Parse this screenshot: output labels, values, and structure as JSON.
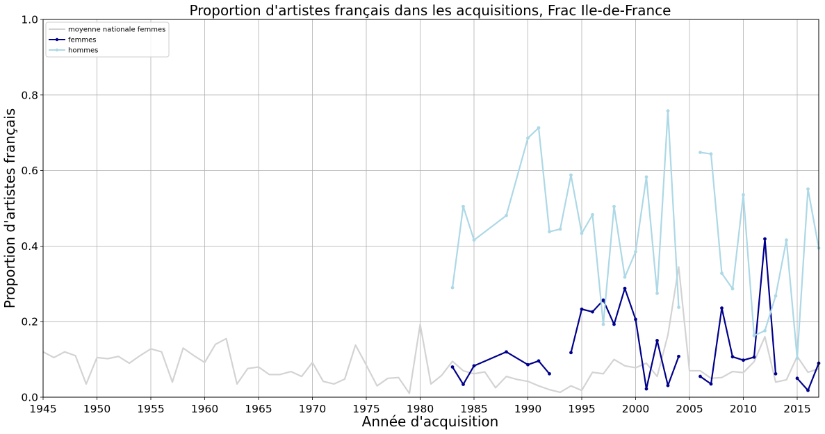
{
  "chart_data": {
    "type": "line",
    "title": "Proportion d'artistes français dans les acquisitions, Frac Ile-de-France",
    "xlabel": "Année d'acquisition",
    "ylabel": "Proportion d'artistes français",
    "xlim": [
      1945,
      2017
    ],
    "ylim": [
      0,
      1.0
    ],
    "xticks": [
      "1945",
      "1950",
      "1955",
      "1960",
      "1965",
      "1970",
      "1975",
      "1980",
      "1985",
      "1990",
      "1995",
      "2000",
      "2005",
      "2010",
      "2015"
    ],
    "yticks": [
      "0.0",
      "0.2",
      "0.4",
      "0.6",
      "0.8",
      "1.0"
    ],
    "grid": true,
    "legend_position": "top-left",
    "series": [
      {
        "name": "moyenne nationale femmes",
        "color": "#d3d3d3",
        "markers": false,
        "segments": [
          [
            [
              1945,
              0.12
            ],
            [
              1946,
              0.105
            ],
            [
              1947,
              0.12
            ],
            [
              1948,
              0.11
            ],
            [
              1949,
              0.035
            ],
            [
              1950,
              0.105
            ],
            [
              1951,
              0.102
            ],
            [
              1952,
              0.108
            ],
            [
              1953,
              0.09
            ],
            [
              1954,
              0.11
            ],
            [
              1955,
              0.128
            ],
            [
              1956,
              0.12
            ],
            [
              1957,
              0.04
            ],
            [
              1958,
              0.13
            ],
            [
              1959,
              0.11
            ],
            [
              1960,
              0.092
            ],
            [
              1961,
              0.14
            ],
            [
              1962,
              0.155
            ],
            [
              1963,
              0.035
            ],
            [
              1964,
              0.076
            ],
            [
              1965,
              0.08
            ],
            [
              1966,
              0.06
            ],
            [
              1967,
              0.06
            ],
            [
              1968,
              0.068
            ],
            [
              1969,
              0.055
            ],
            [
              1970,
              0.092
            ],
            [
              1971,
              0.042
            ],
            [
              1972,
              0.035
            ],
            [
              1973,
              0.048
            ],
            [
              1974,
              0.138
            ],
            [
              1975,
              0.085
            ],
            [
              1976,
              0.03
            ],
            [
              1977,
              0.05
            ],
            [
              1978,
              0.052
            ],
            [
              1979,
              0.01
            ],
            [
              1980,
              0.193
            ],
            [
              1981,
              0.035
            ],
            [
              1982,
              0.058
            ],
            [
              1983,
              0.095
            ],
            [
              1984,
              0.07
            ],
            [
              1985,
              0.062
            ],
            [
              1986,
              0.067
            ],
            [
              1987,
              0.025
            ],
            [
              1988,
              0.055
            ],
            [
              1989,
              0.047
            ],
            [
              1990,
              0.042
            ],
            [
              1991,
              0.03
            ],
            [
              1992,
              0.02
            ],
            [
              1993,
              0.013
            ],
            [
              1994,
              0.03
            ],
            [
              1995,
              0.018
            ],
            [
              1996,
              0.066
            ],
            [
              1997,
              0.062
            ],
            [
              1998,
              0.1
            ],
            [
              1999,
              0.083
            ],
            [
              2000,
              0.078
            ],
            [
              2001,
              0.09
            ],
            [
              2002,
              0.055
            ],
            [
              2003,
              0.165
            ],
            [
              2004,
              0.345
            ],
            [
              2005,
              0.07
            ],
            [
              2006,
              0.07
            ],
            [
              2007,
              0.05
            ],
            [
              2008,
              0.052
            ],
            [
              2009,
              0.068
            ],
            [
              2010,
              0.065
            ],
            [
              2011,
              0.094
            ],
            [
              2012,
              0.16
            ],
            [
              2013,
              0.04
            ],
            [
              2014,
              0.046
            ],
            [
              2015,
              0.108
            ],
            [
              2016,
              0.066
            ],
            [
              2017,
              0.075
            ]
          ]
        ]
      },
      {
        "name": "femmes",
        "color": "#00008b",
        "markers": true,
        "segments": [
          [
            [
              1983,
              0.08
            ],
            [
              1984,
              0.034
            ],
            [
              1985,
              0.083
            ],
            [
              1988,
              0.12
            ],
            [
              1990,
              0.086
            ],
            [
              1991,
              0.096
            ],
            [
              1992,
              0.062
            ]
          ],
          [
            [
              1994,
              0.118
            ],
            [
              1995,
              0.233
            ],
            [
              1996,
              0.226
            ],
            [
              1997,
              0.257
            ],
            [
              1998,
              0.193
            ],
            [
              1999,
              0.288
            ],
            [
              2000,
              0.206
            ],
            [
              2001,
              0.022
            ],
            [
              2002,
              0.15
            ],
            [
              2003,
              0.031
            ],
            [
              2004,
              0.108
            ]
          ],
          [
            [
              2006,
              0.055
            ],
            [
              2007,
              0.035
            ],
            [
              2008,
              0.236
            ],
            [
              2009,
              0.107
            ],
            [
              2010,
              0.098
            ],
            [
              2011,
              0.106
            ],
            [
              2012,
              0.419
            ],
            [
              2013,
              0.062
            ]
          ],
          [
            [
              2015,
              0.05
            ],
            [
              2016,
              0.018
            ],
            [
              2017,
              0.09
            ]
          ]
        ]
      },
      {
        "name": "hommes",
        "color": "#add8e6",
        "markers": true,
        "segments": [
          [
            [
              1983,
              0.29
            ],
            [
              1984,
              0.505
            ],
            [
              1985,
              0.416
            ],
            [
              1988,
              0.481
            ],
            [
              1990,
              0.686
            ],
            [
              1991,
              0.713
            ],
            [
              1992,
              0.438
            ],
            [
              1993,
              0.445
            ],
            [
              1994,
              0.588
            ],
            [
              1995,
              0.434
            ],
            [
              1996,
              0.483
            ],
            [
              1997,
              0.193
            ],
            [
              1998,
              0.505
            ],
            [
              1999,
              0.318
            ],
            [
              2000,
              0.385
            ],
            [
              2001,
              0.583
            ],
            [
              2002,
              0.275
            ],
            [
              2003,
              0.758
            ],
            [
              2004,
              0.238
            ]
          ],
          [
            [
              2006,
              0.648
            ],
            [
              2007,
              0.644
            ],
            [
              2008,
              0.328
            ],
            [
              2009,
              0.287
            ],
            [
              2010,
              0.536
            ],
            [
              2011,
              0.163
            ],
            [
              2012,
              0.176
            ],
            [
              2013,
              0.268
            ],
            [
              2014,
              0.416
            ],
            [
              2015,
              0.103
            ],
            [
              2016,
              0.551
            ],
            [
              2017,
              0.395
            ]
          ]
        ]
      }
    ]
  }
}
